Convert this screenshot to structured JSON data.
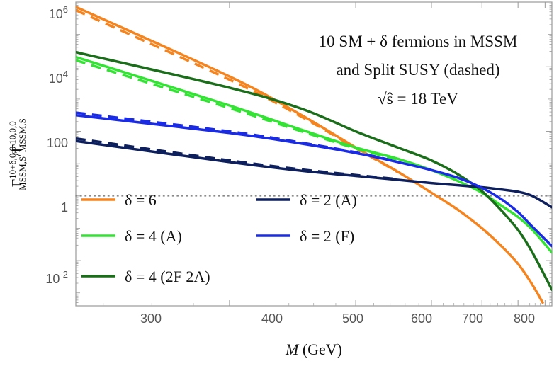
{
  "chart_data": {
    "type": "line",
    "scale_y": "log",
    "xlim": [
      230,
      830
    ],
    "ylim": [
      -3.4,
      6
    ],
    "xticks": [
      300,
      400,
      500,
      600,
      700,
      800
    ],
    "xtick_labels": [
      "300",
      "400",
      "500",
      "600",
      "700",
      "800"
    ],
    "yticks": [
      -2,
      0,
      2,
      4,
      6
    ],
    "ytick_labels": [
      {
        "base": "10",
        "exp": "-2"
      },
      {
        "base": "1",
        "exp": ""
      },
      {
        "base": "100",
        "exp": ""
      },
      {
        "base": "10",
        "exp": "4"
      },
      {
        "base": "10",
        "exp": "6"
      }
    ],
    "xlabel_var": "M",
    "xlabel_unit": "(GeV)",
    "ylabel": {
      "main": "Γ",
      "sup1": "10+δ,0,0",
      "sub1": "MSSM,S",
      "sep": "/Γ",
      "sup2": "10,0,0",
      "sub2": "MSSM,S"
    },
    "annotation": [
      "10 SM + δ fermions in MSSM",
      "and Split SUSY (dashed)",
      "√ŝ = 18 TeV"
    ],
    "reference_line": {
      "y_log10": 0,
      "label": "1"
    },
    "series": [
      {
        "name": "δ = 6",
        "color": "#F5841E",
        "x": [
          230,
          300,
          350,
          400,
          450,
          500,
          550,
          600,
          650,
          700,
          750,
          790
        ],
        "y_log10": [
          5.85,
          3.7,
          2.5,
          1.5,
          0.75,
          0.1,
          -0.45,
          -1.0,
          -1.55,
          -2.1,
          -2.75,
          -3.3
        ],
        "dashed_y_log10": [
          5.75,
          3.6,
          2.45,
          1.48,
          0.74
        ]
      },
      {
        "name": "δ = 4 (A)",
        "color": "#33E333",
        "x": [
          230,
          300,
          350,
          400,
          450,
          500,
          550,
          600,
          650,
          700,
          750,
          830
        ],
        "y_log10": [
          4.3,
          2.8,
          2.05,
          1.5,
          1.15,
          0.8,
          0.45,
          0.1,
          -0.3,
          -0.65,
          -1.05,
          -1.75
        ],
        "dashed_y_log10": [
          4.2,
          2.72,
          2.0,
          1.47,
          1.13
        ]
      },
      {
        "name": "δ = 4 (2F 2A)",
        "color": "#1A6E1A",
        "x": [
          230,
          300,
          350,
          400,
          450,
          500,
          550,
          600,
          650,
          700,
          750,
          830
        ],
        "y_log10": [
          4.45,
          3.35,
          2.7,
          2.0,
          1.5,
          1.1,
          0.65,
          0.15,
          -0.45,
          -1.05,
          -1.75,
          -2.9
        ],
        "dashed_y_log10": []
      },
      {
        "name": "δ = 2 (A)",
        "color": "#0D1F5C",
        "x": [
          230,
          300,
          350,
          400,
          450,
          500,
          550,
          600,
          650,
          700,
          750,
          830
        ],
        "y_log10": [
          1.7,
          1.05,
          0.78,
          0.62,
          0.5,
          0.4,
          0.33,
          0.27,
          0.2,
          0.13,
          0.0,
          -0.35
        ],
        "dashed_y_log10": [
          1.78,
          1.1,
          0.82,
          0.65,
          0.52
        ]
      },
      {
        "name": "δ = 2 (F)",
        "color": "#1A2BE6",
        "x": [
          230,
          300,
          350,
          400,
          450,
          500,
          550,
          600,
          650,
          700,
          750,
          830
        ],
        "y_log10": [
          2.5,
          1.95,
          1.62,
          1.33,
          1.05,
          0.8,
          0.55,
          0.25,
          -0.1,
          -0.5,
          -0.95,
          -1.55
        ],
        "dashed_y_log10": [
          2.58,
          2.0,
          1.65,
          1.35,
          1.06
        ]
      }
    ],
    "legend": {
      "placement": "bottom-left",
      "columns": [
        [
          "δ = 6",
          "δ = 4 (A)",
          "δ = 4 (2F 2A)"
        ],
        [
          "δ = 2 (A)",
          "δ = 2 (F)"
        ]
      ]
    },
    "legend_labels": {
      "d6": "δ = 6",
      "d4a": "δ = 4 (A)",
      "d42f2a": "δ = 4 (2F 2A)",
      "d2a": "δ = 2 (A)",
      "d2f": "δ = 2 (F)"
    }
  }
}
